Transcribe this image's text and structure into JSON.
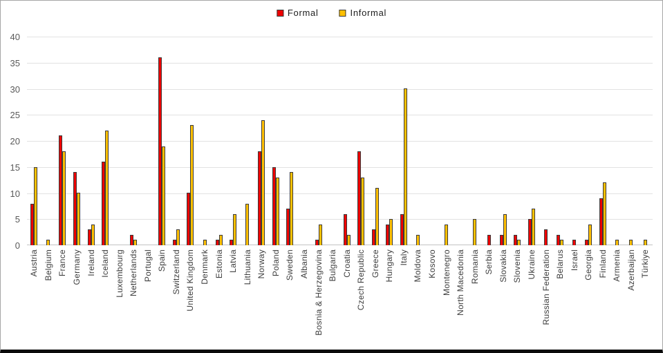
{
  "chart_data": {
    "type": "bar",
    "title": "",
    "xlabel": "",
    "ylabel": "",
    "ylim": [
      0,
      40
    ],
    "yticks": [
      40,
      35,
      30,
      25,
      20,
      15,
      10,
      5,
      0
    ],
    "grid": true,
    "legend_position": "top-center",
    "bar_outline_color": "#3a3a3a",
    "categories": [
      "Austria",
      "Belgium",
      "France",
      "Germany",
      "Ireland",
      "Iceland",
      "Luxembourg",
      "Netherlands",
      "Portugal",
      "Spain",
      "Switzerland",
      "United Kingdom",
      "Denmark",
      "Estonia",
      "Latvia",
      "Lithuania",
      "Norway",
      "Poland",
      "Sweden",
      "Albania",
      "Bosnia & Herzegovina",
      "Bulgaria",
      "Croatia",
      "Czech Republic",
      "Greece",
      "Hungary",
      "Italy",
      "Moldova",
      "Kosovo",
      "Montenegro",
      "North Macedonia",
      "Romania",
      "Serbia",
      "Slovakia",
      "Slovenia",
      "Ukraine",
      "Russian Federation",
      "Belarus",
      "Israel",
      "Georgia",
      "Finland",
      "Armenia",
      "Azerbaijan",
      "Türkiye"
    ],
    "series": [
      {
        "name": "Formal",
        "color": "#ee0000",
        "values": [
          8,
          0,
          21,
          14,
          3,
          16,
          0,
          2,
          0,
          36,
          1,
          10,
          0,
          1,
          1,
          0,
          18,
          15,
          7,
          0,
          1,
          0,
          6,
          18,
          3,
          4,
          6,
          0,
          0,
          0,
          0,
          0,
          2,
          2,
          2,
          5,
          3,
          2,
          1,
          1,
          9,
          0,
          0,
          0
        ]
      },
      {
        "name": "Informal",
        "color": "#ffc000",
        "values": [
          15,
          1,
          18,
          10,
          4,
          22,
          0,
          1,
          0,
          19,
          3,
          23,
          1,
          2,
          6,
          8,
          24,
          13,
          14,
          0,
          4,
          0,
          2,
          13,
          11,
          5,
          30,
          2,
          0,
          4,
          0,
          5,
          0,
          6,
          1,
          7,
          0,
          1,
          0,
          4,
          12,
          1,
          1,
          1
        ]
      }
    ]
  }
}
